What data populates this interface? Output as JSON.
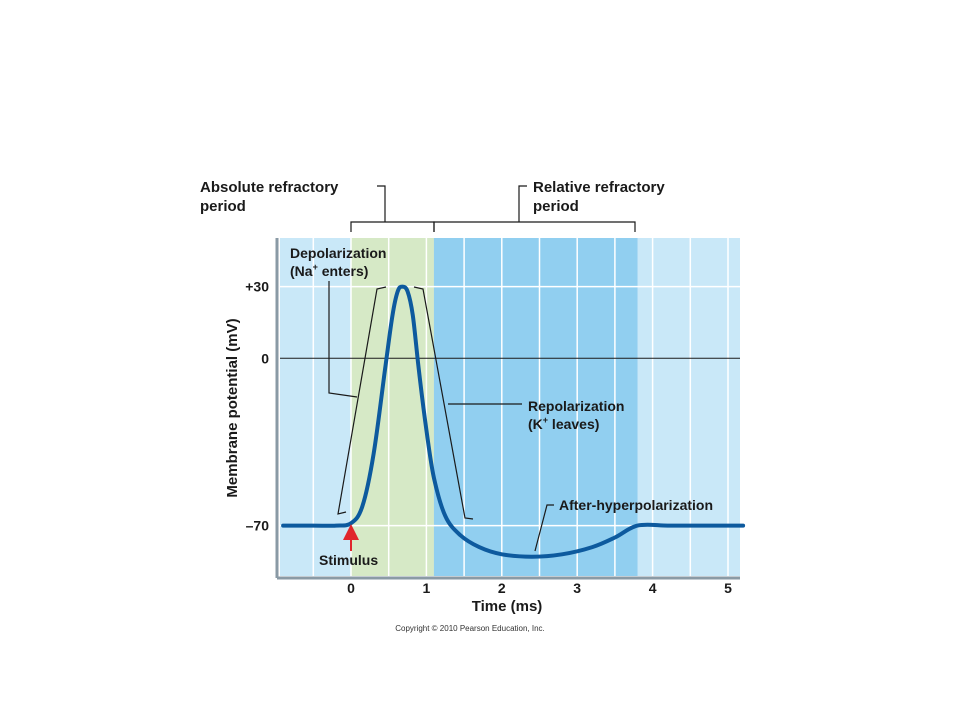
{
  "figure": {
    "bracket_labels": {
      "absolute": [
        "Absolute refractory",
        "period"
      ],
      "relative": [
        "Relative refractory",
        "period"
      ]
    },
    "annotations": {
      "depolarization": [
        "Depolarization",
        "(Na",
        "+",
        " enters)"
      ],
      "repolarization": [
        "Repolarization",
        "(K",
        "+",
        " leaves)"
      ],
      "after_hyperpolarization": "After-hyperpolarization",
      "stimulus": "Stimulus"
    },
    "copyright": "Copyright © 2010 Pearson Education, Inc.",
    "colors": {
      "background_light": "#c9e8f8",
      "absolute_zone": "#d6e9c6",
      "relative_zone": "#91cff0",
      "curve": "#0d5a9e",
      "stimulus_arrow": "#e0262b"
    }
  },
  "chart_data": {
    "type": "line",
    "xlabel": "Time (ms)",
    "ylabel": "Membrane potential (mV)",
    "xlim": [
      -0.9,
      5.2
    ],
    "ylim": [
      -85,
      42
    ],
    "x_ticks": [
      "0",
      "1",
      "2",
      "3",
      "4",
      "5"
    ],
    "x_tick_values": [
      0,
      1,
      2,
      3,
      4,
      5
    ],
    "y_ticks": [
      "+30",
      "0",
      "–70"
    ],
    "y_tick_values": [
      30,
      0,
      -70
    ],
    "grid": true,
    "zones": [
      {
        "name": "absolute_refractory",
        "x_start": 0,
        "x_end": 1.1
      },
      {
        "name": "relative_refractory",
        "x_start": 1.1,
        "x_end": 3.8
      }
    ],
    "series": [
      {
        "points": [
          [
            -0.9,
            -70
          ],
          [
            -0.5,
            -70
          ],
          [
            -0.2,
            -70
          ],
          [
            0,
            -69
          ],
          [
            0.15,
            -62
          ],
          [
            0.3,
            -40
          ],
          [
            0.45,
            -5
          ],
          [
            0.55,
            18
          ],
          [
            0.62,
            28
          ],
          [
            0.68,
            30
          ],
          [
            0.75,
            28
          ],
          [
            0.82,
            18
          ],
          [
            0.9,
            -5
          ],
          [
            1.0,
            -30
          ],
          [
            1.1,
            -50
          ],
          [
            1.25,
            -66
          ],
          [
            1.45,
            -74
          ],
          [
            1.7,
            -79
          ],
          [
            2.0,
            -82
          ],
          [
            2.4,
            -83
          ],
          [
            2.8,
            -82
          ],
          [
            3.2,
            -79
          ],
          [
            3.5,
            -75
          ],
          [
            3.8,
            -70
          ],
          [
            4.2,
            -70
          ],
          [
            4.6,
            -70
          ],
          [
            5.2,
            -70
          ]
        ]
      }
    ]
  }
}
